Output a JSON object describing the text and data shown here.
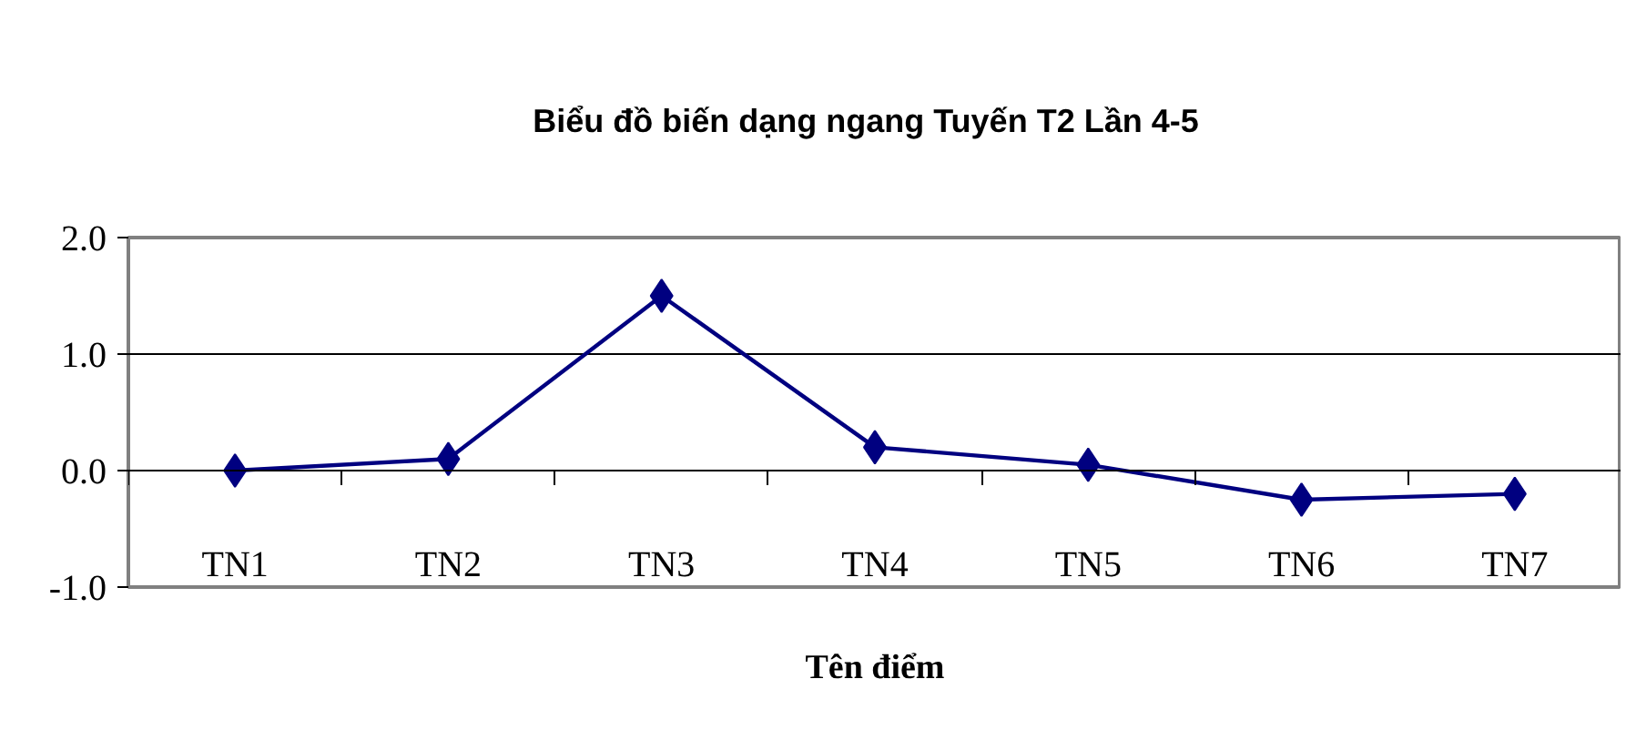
{
  "chart_data": {
    "type": "line",
    "title": "Biểu đồ biến dạng ngang Tuyến T2   Lần 4-5",
    "xlabel": "Tên điểm",
    "categories": [
      "TN1",
      "TN2",
      "TN3",
      "TN4",
      "TN5",
      "TN6",
      "TN7"
    ],
    "series": [
      {
        "color": "#000080",
        "values": [
          0.0,
          0.1,
          1.5,
          0.2,
          0.05,
          -0.25,
          -0.2
        ]
      }
    ],
    "ylim": [
      -1,
      2
    ],
    "yticks": [
      {
        "value": -1,
        "label": "-1.0"
      },
      {
        "value": 0,
        "label": "0.0"
      },
      {
        "value": 1,
        "label": "1.0"
      },
      {
        "value": 2,
        "label": "2.0"
      }
    ],
    "grid": "y",
    "marker": "diamond",
    "line_style": "solid"
  }
}
